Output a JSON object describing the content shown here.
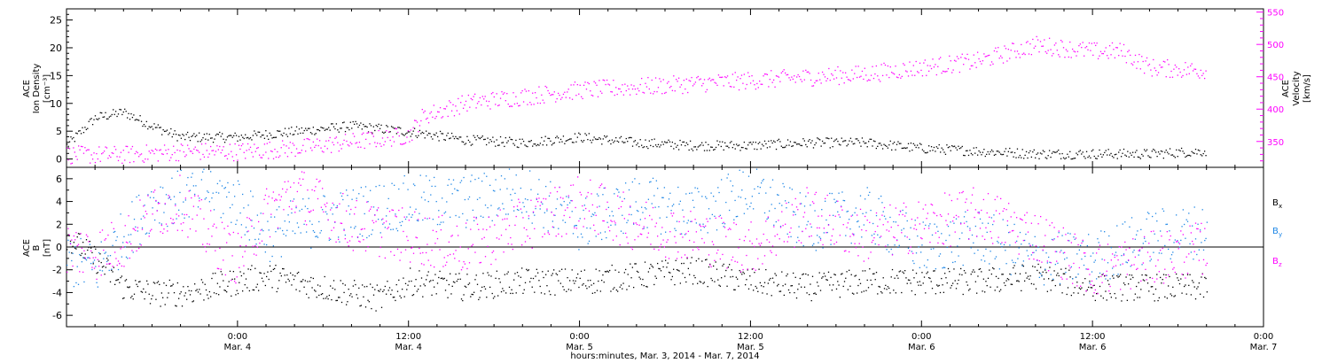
{
  "chart_data": [
    {
      "type": "scatter",
      "title": "",
      "ylabel_left": [
        "ACE",
        "Ion Density",
        "[cm⁻³]"
      ],
      "ylabel_right": [
        "ACE",
        "Velocity",
        "[km/s]"
      ],
      "xlim_hours": [
        -12,
        72
      ],
      "ylim_left": [
        -1.5,
        27
      ],
      "yticks_left": [
        0,
        5,
        10,
        15,
        20,
        25
      ],
      "ylim_right": [
        310,
        555
      ],
      "yticks_right": [
        350,
        400,
        450,
        500,
        550
      ],
      "series": [
        {
          "axis": "left",
          "color": "#000000",
          "x": [
            -12,
            -10,
            -8,
            -6,
            -4,
            -2,
            0,
            4,
            8,
            12,
            16,
            20,
            24,
            28,
            32,
            36,
            40,
            44,
            48,
            52,
            56,
            60,
            64,
            68
          ],
          "y": [
            2.5,
            7.5,
            8.5,
            6,
            4,
            4,
            4,
            5,
            6,
            5,
            3.5,
            3,
            4,
            3,
            2.5,
            2.5,
            3,
            3,
            2,
            1.5,
            1,
            1,
            1,
            1.5
          ]
        },
        {
          "axis": "right",
          "color": "#ff00ff",
          "x": [
            -12,
            -8,
            -4,
            0,
            4,
            8,
            12,
            13,
            16,
            20,
            24,
            28,
            32,
            36,
            40,
            44,
            48,
            52,
            56,
            60,
            62,
            64,
            68
          ],
          "y": [
            330,
            330,
            335,
            335,
            340,
            350,
            360,
            390,
            410,
            420,
            430,
            435,
            440,
            445,
            450,
            455,
            465,
            475,
            500,
            490,
            490,
            465,
            460
          ]
        }
      ]
    },
    {
      "type": "scatter",
      "title": "",
      "ylabel_left": [
        "ACE",
        "B",
        "[nT]"
      ],
      "xlim_hours": [
        -12,
        72
      ],
      "ylim": [
        -7,
        7
      ],
      "yticks": [
        -6,
        -4,
        -2,
        0,
        2,
        4,
        6
      ],
      "legend_position": "right",
      "series": [
        {
          "name": "Bx",
          "label_main": "B",
          "label_sub": "x",
          "color": "#000000",
          "x": [
            -12,
            -10,
            -8,
            -6,
            -4,
            -2,
            0,
            2,
            4,
            6,
            8,
            10,
            12,
            16,
            20,
            24,
            28,
            32,
            36,
            40,
            44,
            48,
            52,
            56,
            60,
            64,
            68
          ],
          "y": [
            1,
            -1,
            -3.5,
            -4,
            -4,
            -3.5,
            -3,
            -2.5,
            -3,
            -3.5,
            -4,
            -4.5,
            -3,
            -3.5,
            -3,
            -3,
            -2.5,
            -2,
            -3,
            -3.5,
            -3,
            -3,
            -3,
            -2.5,
            -3.5,
            -3.5,
            -3.5
          ]
        },
        {
          "name": "By",
          "label_main": "B",
          "label_sub": "y",
          "color": "#1f87e6",
          "x": [
            -12,
            -10,
            -8,
            -6,
            -4,
            -2,
            0,
            2,
            4,
            8,
            12,
            16,
            20,
            24,
            28,
            32,
            36,
            40,
            44,
            48,
            52,
            56,
            60,
            64,
            68
          ],
          "y": [
            -1,
            -2,
            1,
            4,
            4.5,
            5,
            4,
            1,
            2,
            3,
            4,
            4,
            5,
            2,
            4,
            3,
            5,
            2,
            3,
            0,
            1,
            -1,
            -1,
            1,
            1.5
          ]
        },
        {
          "name": "Bz",
          "label_main": "B",
          "label_sub": "z",
          "color": "#ff00ff",
          "x": [
            -12,
            -10,
            -8,
            -6,
            -4,
            -2,
            0,
            2,
            4,
            8,
            12,
            16,
            20,
            24,
            28,
            32,
            36,
            40,
            44,
            48,
            52,
            56,
            60,
            64,
            68
          ],
          "y": [
            0,
            -0.5,
            0.5,
            3,
            4,
            1,
            -1,
            3,
            5,
            2,
            1,
            0,
            2,
            4,
            2,
            1,
            0,
            3,
            1,
            2,
            3,
            1,
            -2,
            -1,
            0
          ]
        }
      ]
    }
  ],
  "xaxis": {
    "ticks": [
      {
        "hour": 0,
        "time": "0:00",
        "date": "Mar. 4"
      },
      {
        "hour": 12,
        "time": "12:00",
        "date": "Mar. 4"
      },
      {
        "hour": 24,
        "time": "0:00",
        "date": "Mar. 5"
      },
      {
        "hour": 36,
        "time": "12:00",
        "date": "Mar. 5"
      },
      {
        "hour": 48,
        "time": "0:00",
        "date": "Mar. 6"
      },
      {
        "hour": 60,
        "time": "12:00",
        "date": "Mar. 6"
      },
      {
        "hour": 72,
        "time": "0:00",
        "date": "Mar. 7"
      }
    ],
    "title": "hours:minutes, Mar.  3, 2014 - Mar.  7, 2014"
  }
}
